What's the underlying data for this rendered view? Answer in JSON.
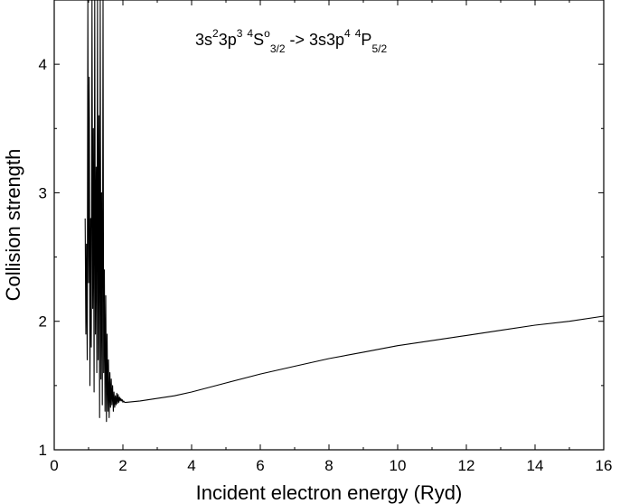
{
  "chart_data": {
    "type": "line",
    "title": "",
    "xlabel": "Incident electron energy (Ryd)",
    "ylabel": "Collision strength",
    "xlim": [
      0,
      16
    ],
    "ylim": [
      1,
      4.5
    ],
    "x_ticks": [
      "0",
      "2",
      "4",
      "6",
      "8",
      "10",
      "12",
      "14",
      "16"
    ],
    "y_ticks": [
      "1",
      "2",
      "3",
      "4"
    ],
    "grid": false,
    "legend": "none",
    "annotation": {
      "p1": "3s",
      "s1": "2",
      "p2": "3p",
      "s2": "3",
      "s3": "4",
      "p3": "S",
      "s4": "o",
      "sub1": "3/2",
      "p4": " -> 3s3p",
      "s5": "4",
      "s6": "4",
      "p5": "P",
      "sub2": "5/2"
    },
    "series": [
      {
        "color": "#000000",
        "resonance_region": [
          [
            0.9,
            2.8
          ],
          [
            0.92,
            1.9
          ],
          [
            0.94,
            2.6
          ],
          [
            0.96,
            1.7
          ],
          [
            0.98,
            4.5
          ],
          [
            1.0,
            2.3
          ],
          [
            1.02,
            3.9
          ],
          [
            1.04,
            1.5
          ],
          [
            1.06,
            2.8
          ],
          [
            1.08,
            1.8
          ],
          [
            1.1,
            4.5
          ],
          [
            1.12,
            2.1
          ],
          [
            1.14,
            3.5
          ],
          [
            1.16,
            1.45
          ],
          [
            1.18,
            4.5
          ],
          [
            1.2,
            1.9
          ],
          [
            1.22,
            3.2
          ],
          [
            1.24,
            1.6
          ],
          [
            1.26,
            4.5
          ],
          [
            1.28,
            1.7
          ],
          [
            1.3,
            3.6
          ],
          [
            1.32,
            1.25
          ],
          [
            1.34,
            4.5
          ],
          [
            1.36,
            1.55
          ],
          [
            1.38,
            3.0
          ],
          [
            1.4,
            1.35
          ],
          [
            1.42,
            4.5
          ],
          [
            1.44,
            1.6
          ],
          [
            1.46,
            2.4
          ],
          [
            1.48,
            1.3
          ],
          [
            1.5,
            2.2
          ],
          [
            1.52,
            1.22
          ],
          [
            1.54,
            1.9
          ],
          [
            1.56,
            1.3
          ],
          [
            1.58,
            1.7
          ],
          [
            1.6,
            1.25
          ],
          [
            1.62,
            1.6
          ],
          [
            1.64,
            1.33
          ],
          [
            1.66,
            1.55
          ],
          [
            1.68,
            1.35
          ],
          [
            1.7,
            1.5
          ],
          [
            1.72,
            1.3
          ],
          [
            1.74,
            1.45
          ],
          [
            1.76,
            1.33
          ],
          [
            1.78,
            1.42
          ],
          [
            1.8,
            1.35
          ],
          [
            1.82,
            1.44
          ],
          [
            1.84,
            1.36
          ],
          [
            1.86,
            1.43
          ],
          [
            1.88,
            1.37
          ],
          [
            1.9,
            1.41
          ],
          [
            1.92,
            1.38
          ],
          [
            1.94,
            1.4
          ],
          [
            1.96,
            1.38
          ],
          [
            1.98,
            1.39
          ],
          [
            2.0,
            1.37
          ],
          [
            2.02,
            1.38
          ],
          [
            2.05,
            1.37
          ]
        ],
        "smooth_region": [
          [
            2.1,
            1.37
          ],
          [
            2.5,
            1.38
          ],
          [
            3,
            1.4
          ],
          [
            3.5,
            1.42
          ],
          [
            4,
            1.45
          ],
          [
            5,
            1.52
          ],
          [
            6,
            1.59
          ],
          [
            7,
            1.65
          ],
          [
            8,
            1.71
          ],
          [
            9,
            1.76
          ],
          [
            10,
            1.81
          ],
          [
            11,
            1.85
          ],
          [
            12,
            1.89
          ],
          [
            13,
            1.93
          ],
          [
            14,
            1.97
          ],
          [
            15,
            2.0
          ],
          [
            16,
            2.04
          ]
        ]
      }
    ]
  }
}
